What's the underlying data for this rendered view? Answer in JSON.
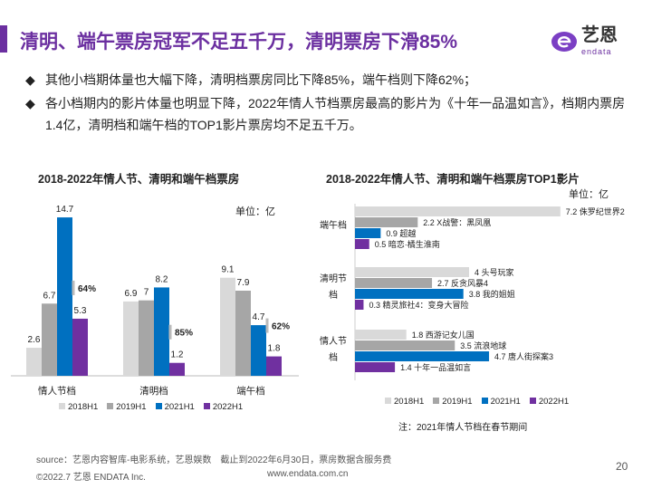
{
  "title": "清明、端午票房冠军不足五千万，清明票房下滑85%",
  "logo": {
    "cn": "艺恩",
    "en": "endata"
  },
  "bullets": [
    "其他小档期体量也大幅下降，清明档票房同比下降85%，端午档则下降62%；",
    "各小档期内的影片体量也明显下降，2022年情人节档票房最高的影片为《十年一品温如言》，档期内票房1.4亿，清明档和端午档的TOP1影片票房均不足五千万。"
  ],
  "bullet_icon": "diamond-bullet-icon",
  "colors": {
    "2018H1": "#d9d9d9",
    "2019H1": "#a6a6a6",
    "2021H1": "#0070c0",
    "2022H1": "#7030a0",
    "brand": "#6b2fa0"
  },
  "chart_data": [
    {
      "type": "bar",
      "title": "2018-2022年情人节、清明和端午档票房",
      "unit": "单位：亿",
      "categories": [
        "情人节档",
        "清明档",
        "端午档"
      ],
      "series": [
        {
          "name": "2018H1",
          "values": [
            2.6,
            6.9,
            9.1
          ]
        },
        {
          "name": "2019H1",
          "values": [
            6.7,
            7,
            7.9
          ]
        },
        {
          "name": "2021H1",
          "values": [
            14.7,
            8.2,
            4.7
          ]
        },
        {
          "name": "2022H1",
          "values": [
            5.3,
            1.2,
            1.8
          ]
        }
      ],
      "annotations": [
        "64%",
        "85%",
        "62%"
      ],
      "ylim": [
        0,
        15
      ],
      "legend": "bottom"
    },
    {
      "type": "bar",
      "orientation": "horizontal",
      "title": "2018-2022年情人节、清明和端午档票房TOP1影片",
      "unit": "单位：亿",
      "categories": [
        "端午档",
        "清明节档",
        "情人节档"
      ],
      "series": [
        {
          "name": "2018H1",
          "values": [
            7.2,
            4,
            1.8
          ],
          "films": [
            "侏罗纪世界2",
            "头号玩家",
            "西游记女儿国"
          ]
        },
        {
          "name": "2019H1",
          "values": [
            2.2,
            2.7,
            3.5
          ],
          "films": [
            "X战警：黑凤凰",
            "反贪风暴4",
            "流浪地球"
          ]
        },
        {
          "name": "2021H1",
          "values": [
            0.9,
            3.8,
            4.7
          ],
          "films": [
            "超越",
            "我的姐姐",
            "唐人街探案3"
          ]
        },
        {
          "name": "2022H1",
          "values": [
            0.5,
            0.3,
            1.4
          ],
          "films": [
            "暗恋·橘生淮南",
            "精灵旅社4：变身大冒险",
            "十年一品温如言"
          ]
        }
      ],
      "note": "注：2021年情人节档在春节期间",
      "xlim": [
        0,
        7.2
      ],
      "legend": "bottom"
    }
  ],
  "footer": {
    "source": "source：艺恩内容智库-电影系统，艺恩娱数　截止到2022年6月30日，票房数据含服务费",
    "copyright": "©2022.7 艺恩 ENDATA Inc.",
    "url": "www.endata.com.cn",
    "page": "20"
  }
}
